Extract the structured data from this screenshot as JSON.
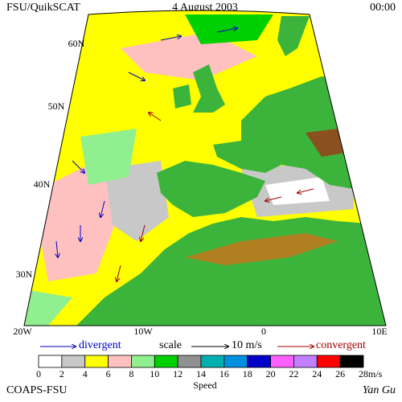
{
  "header": {
    "title": "FSU/QuikSCAT",
    "date": "4 August 2003",
    "time": "00:00"
  },
  "map": {
    "lat_labels": [
      "60N",
      "50N",
      "40N",
      "30N"
    ],
    "lon_labels": [
      "20W",
      "10W",
      "0",
      "10E"
    ]
  },
  "legend": {
    "divergent": "divergent",
    "scale": "scale",
    "scale_value": "10 m/s",
    "convergent": "convergent",
    "colorbar": {
      "title": "Speed",
      "unit": "m/s",
      "labels": [
        "0",
        "2",
        "4",
        "6",
        "8",
        "10",
        "12",
        "14",
        "16",
        "18",
        "20",
        "22",
        "24",
        "26",
        "28"
      ],
      "colors": [
        "#ffffff",
        "#c8c8c8",
        "#ffff00",
        "#ffc0c0",
        "#90f090",
        "#00d000",
        "#909090",
        "#00b0b0",
        "#0090e0",
        "#0000c8",
        "#ff60ff",
        "#c080ff",
        "#ff0000",
        "#000000"
      ]
    }
  },
  "footer": {
    "left": "COAPS-FSU",
    "right": "Yan Gu"
  }
}
